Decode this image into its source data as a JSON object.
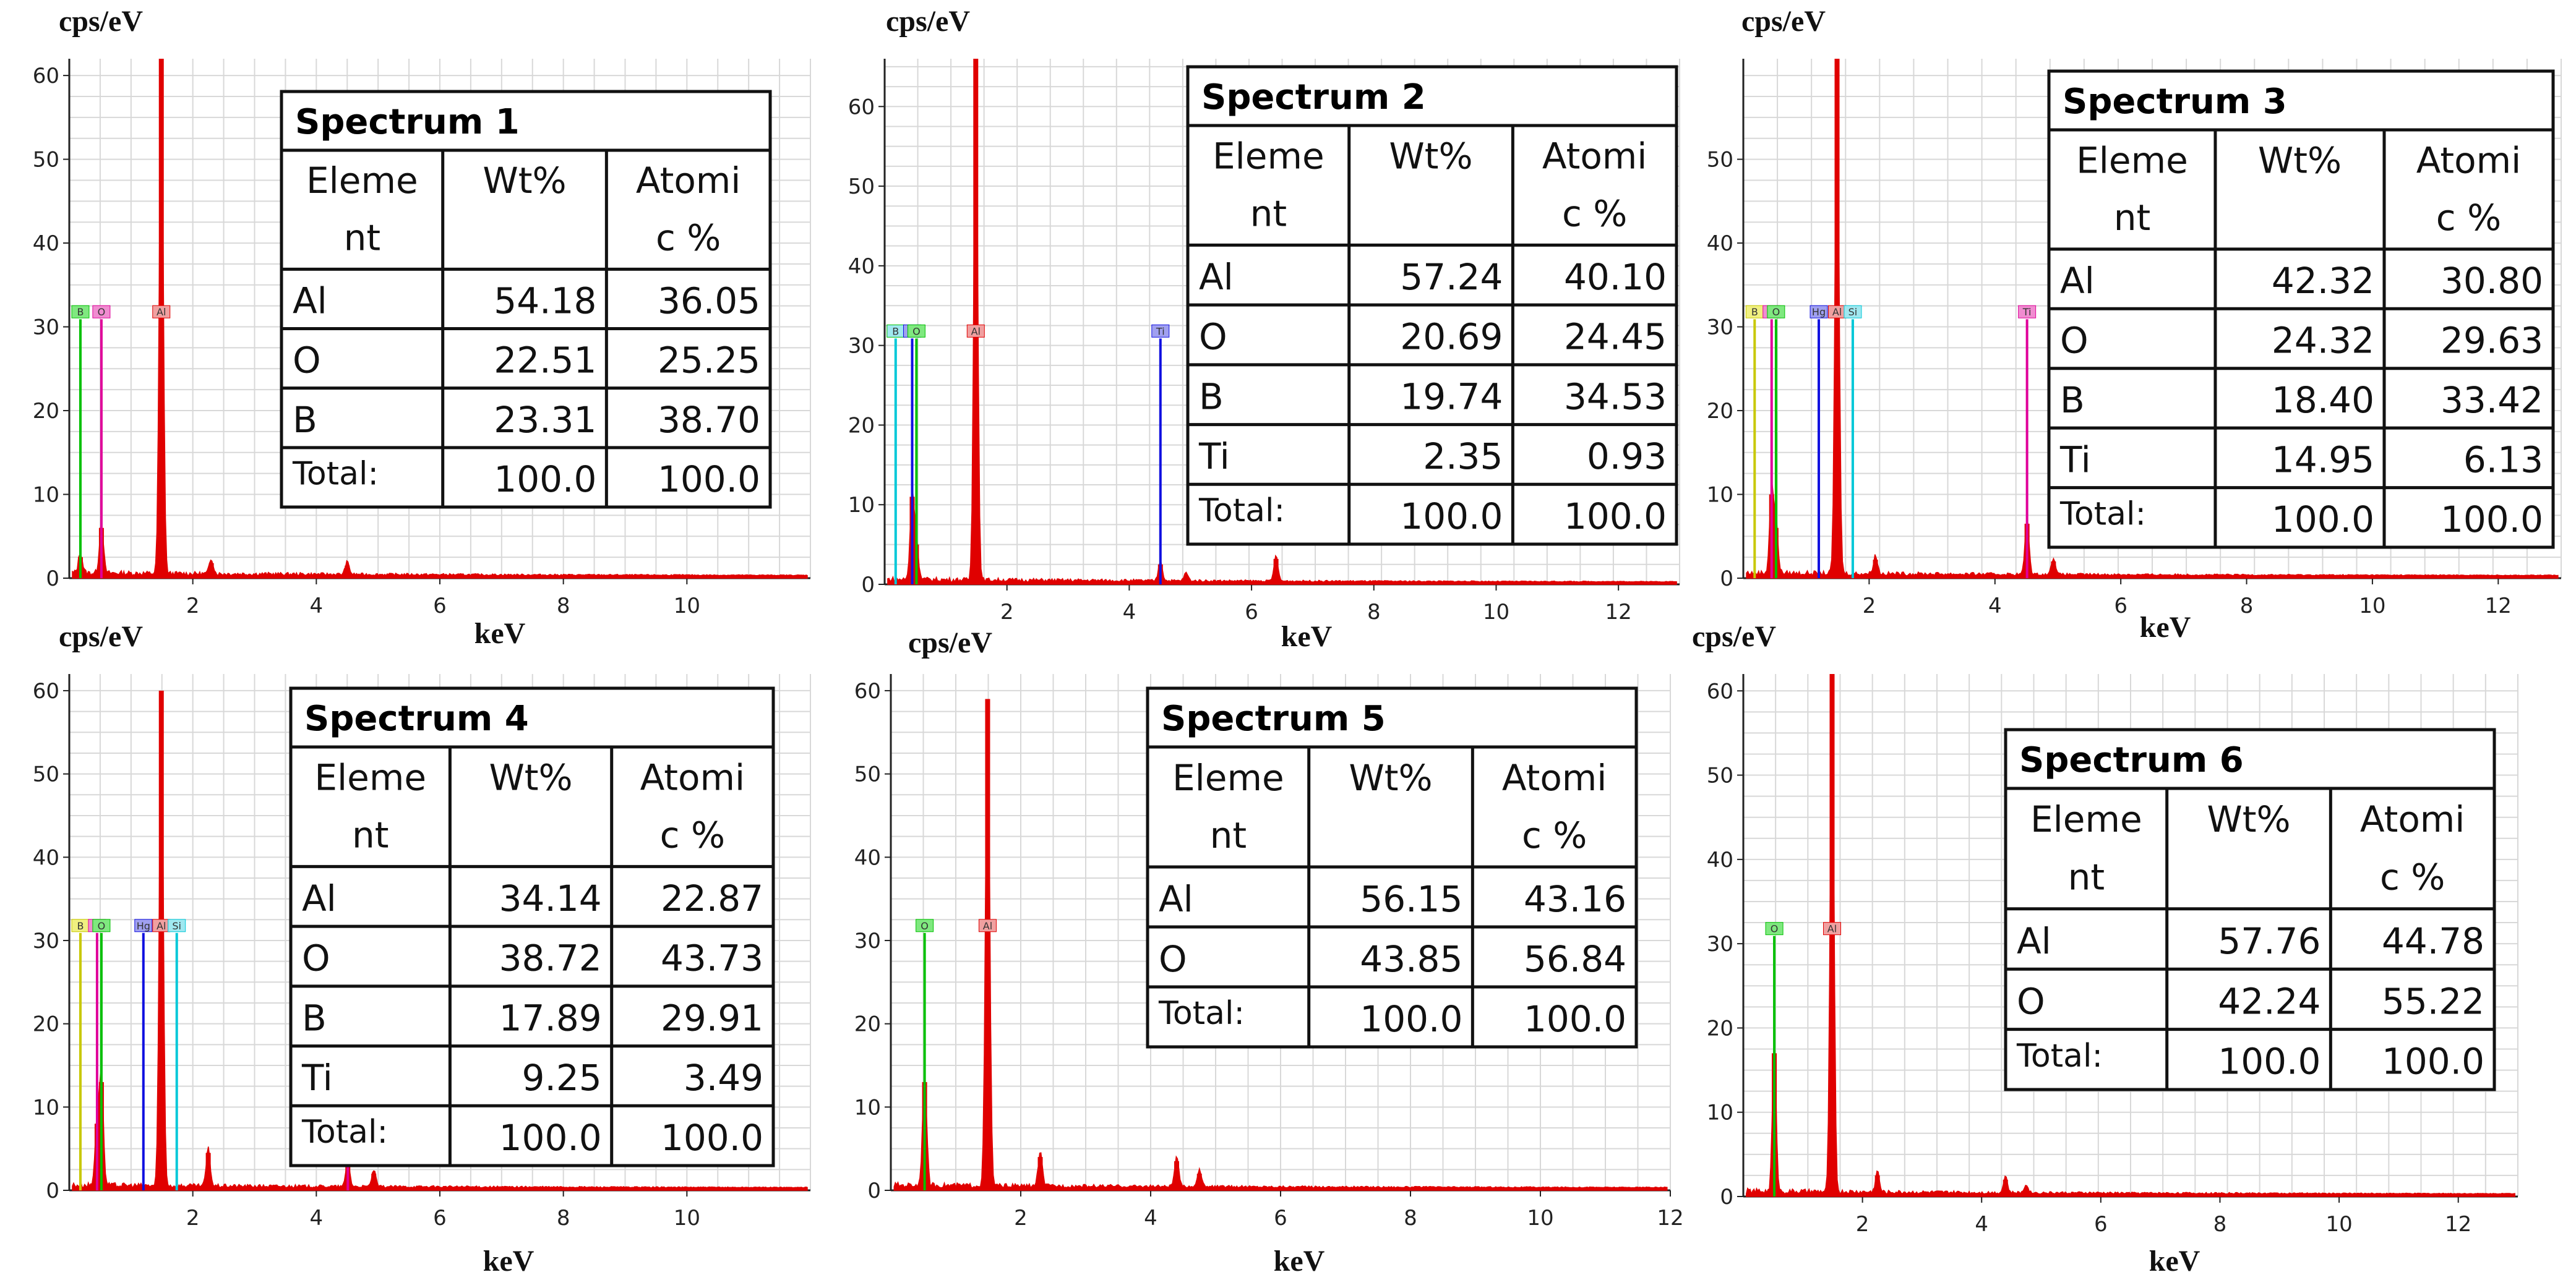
{
  "figure": {
    "ylabel": "cps/eV",
    "xlabel": "keV"
  },
  "colors": {
    "spectrum": "#e00000",
    "B": "#00c000",
    "O": "#e0009a",
    "Al": "#e00000",
    "Ti": "#1010e0",
    "Hg": "#1010e0",
    "Si": "#00c8d8",
    "grid": "#d8d8d8"
  },
  "chart_data": [
    {
      "type": "bar",
      "title": "Spectrum 1",
      "xlabel": "keV",
      "ylabel": "cps/eV",
      "xlim": [
        0,
        12
      ],
      "ylim": [
        0,
        62
      ],
      "xticks": [
        "2",
        "4",
        "6",
        "8",
        "10"
      ],
      "yticks": [
        "0",
        "10",
        "20",
        "30",
        "40",
        "50",
        "60"
      ],
      "markers": [
        {
          "el": "B",
          "x": 0.18,
          "label_color": "#00c000",
          "line_color": "#00c000",
          "label_bg": "#7fe87f"
        },
        {
          "el": "O",
          "x": 0.52,
          "label_color": "#e0009a",
          "line_color": "#e0009a",
          "label_bg": "#f08cd0"
        },
        {
          "el": "Al",
          "x": 1.49,
          "label_color": "#e00000",
          "line_color": "#e00000",
          "label_bg": "#f0a0a0"
        }
      ],
      "peaks": [
        {
          "x": 0.18,
          "y": 2.5
        },
        {
          "x": 0.52,
          "y": 6.0
        },
        {
          "x": 1.49,
          "y": 62
        },
        {
          "x": 2.3,
          "y": 1.8
        },
        {
          "x": 4.5,
          "y": 1.5
        }
      ],
      "table": {
        "heading": "Spectrum 1",
        "col1": [
          "Eleme",
          "nt"
        ],
        "col2": "Wt%",
        "col3": [
          "Atomi",
          "c %"
        ],
        "rows": [
          {
            "el": "Al",
            "wt": "54.18",
            "at": "36.05"
          },
          {
            "el": "O",
            "wt": "22.51",
            "at": "25.25"
          },
          {
            "el": "B",
            "wt": "23.31",
            "at": "38.70"
          },
          {
            "el": "Total:",
            "wt": "100.0",
            "at": "100.0"
          }
        ]
      }
    },
    {
      "type": "bar",
      "title": "Spectrum 2",
      "xlabel": "keV",
      "ylabel": "cps/eV",
      "xlim": [
        0,
        13
      ],
      "ylim": [
        0,
        66
      ],
      "xticks": [
        "2",
        "4",
        "6",
        "8",
        "10",
        "12"
      ],
      "yticks": [
        "0",
        "10",
        "20",
        "30",
        "40",
        "50",
        "60"
      ],
      "markers": [
        {
          "el": "B",
          "x": 0.18,
          "label_color": "#00c000",
          "line_color": "#00c8d8",
          "label_bg": "#a0e8f0"
        },
        {
          "el": "Ti",
          "x": 0.45,
          "label_color": "#1010e0",
          "line_color": "#1010e0",
          "label_bg": "#a0a0f0"
        },
        {
          "el": "O",
          "x": 0.52,
          "label_color": "#00c000",
          "line_color": "#00c000",
          "label_bg": "#7fe87f"
        },
        {
          "el": "Al",
          "x": 1.49,
          "label_color": "#e00000",
          "line_color": "#e00000",
          "label_bg": "#f0a0a0"
        },
        {
          "el": "Ti",
          "x": 4.51,
          "label_color": "#1010e0",
          "line_color": "#1010e0",
          "label_bg": "#a0a0f0"
        }
      ],
      "peaks": [
        {
          "x": 0.45,
          "y": 11
        },
        {
          "x": 0.52,
          "y": 5
        },
        {
          "x": 1.49,
          "y": 66
        },
        {
          "x": 4.51,
          "y": 2.5
        },
        {
          "x": 4.93,
          "y": 1.0
        },
        {
          "x": 6.4,
          "y": 3.2
        }
      ],
      "table": {
        "heading": "Spectrum 2",
        "col1": [
          "Eleme",
          "nt"
        ],
        "col2": "Wt%",
        "col3": [
          "Atomi",
          "c %"
        ],
        "rows": [
          {
            "el": "Al",
            "wt": "57.24",
            "at": "40.10"
          },
          {
            "el": "O",
            "wt": "20.69",
            "at": "24.45"
          },
          {
            "el": "B",
            "wt": "19.74",
            "at": "34.53"
          },
          {
            "el": "Ti",
            "wt": "2.35",
            "at": "0.93"
          },
          {
            "el": "Total:",
            "wt": "100.0",
            "at": "100.0"
          }
        ]
      }
    },
    {
      "type": "bar",
      "title": "Spectrum 3",
      "xlabel": "keV",
      "ylabel": "cps/eV",
      "xlim": [
        0,
        13
      ],
      "ylim": [
        0,
        62
      ],
      "xticks": [
        "2",
        "4",
        "6",
        "8",
        "10",
        "12"
      ],
      "yticks": [
        "0",
        "10",
        "20",
        "30",
        "40",
        "50"
      ],
      "markers": [
        {
          "el": "B",
          "x": 0.18,
          "label_color": "#c8c800",
          "line_color": "#c8c800",
          "label_bg": "#f0f080"
        },
        {
          "el": "Ti",
          "x": 0.45,
          "label_color": "#e0009a",
          "line_color": "#e0009a",
          "label_bg": "#f08cd0"
        },
        {
          "el": "O",
          "x": 0.52,
          "label_color": "#00c000",
          "line_color": "#00c000",
          "label_bg": "#7fe87f"
        },
        {
          "el": "Hg",
          "x": 1.2,
          "label_color": "#1010e0",
          "line_color": "#1010e0",
          "label_bg": "#a0a0f0"
        },
        {
          "el": "Al",
          "x": 1.49,
          "label_color": "#e00000",
          "line_color": "#e00000",
          "label_bg": "#f0a0a0"
        },
        {
          "el": "Si",
          "x": 1.74,
          "label_color": "#00c8d8",
          "line_color": "#00c8d8",
          "label_bg": "#a0e8f0"
        },
        {
          "el": "Ti",
          "x": 4.51,
          "label_color": "#e0009a",
          "line_color": "#e0009a",
          "label_bg": "#f08cd0"
        }
      ],
      "peaks": [
        {
          "x": 0.45,
          "y": 10
        },
        {
          "x": 0.52,
          "y": 6
        },
        {
          "x": 1.49,
          "y": 62
        },
        {
          "x": 2.1,
          "y": 2.2
        },
        {
          "x": 4.51,
          "y": 6.5
        },
        {
          "x": 4.93,
          "y": 2.0
        }
      ],
      "table": {
        "heading": "Spectrum 3",
        "col1": [
          "Eleme",
          "nt"
        ],
        "col2": "Wt%",
        "col3": [
          "Atomi",
          "c %"
        ],
        "rows": [
          {
            "el": "Al",
            "wt": "42.32",
            "at": "30.80"
          },
          {
            "el": "O",
            "wt": "24.32",
            "at": "29.63"
          },
          {
            "el": "B",
            "wt": "18.40",
            "at": "33.42"
          },
          {
            "el": "Ti",
            "wt": "14.95",
            "at": "6.13"
          },
          {
            "el": "Total:",
            "wt": "100.0",
            "at": "100.0"
          }
        ]
      }
    },
    {
      "type": "bar",
      "title": "Spectrum 4",
      "xlabel": "keV",
      "ylabel": "cps/eV",
      "xlim": [
        0,
        12
      ],
      "ylim": [
        0,
        62
      ],
      "xticks": [
        "2",
        "4",
        "6",
        "8",
        "10"
      ],
      "yticks": [
        "0",
        "10",
        "20",
        "30",
        "40",
        "50",
        "60"
      ],
      "markers": [
        {
          "el": "B",
          "x": 0.18,
          "label_color": "#c8c800",
          "line_color": "#c8c800",
          "label_bg": "#f0f080"
        },
        {
          "el": "Ti",
          "x": 0.45,
          "label_color": "#e0009a",
          "line_color": "#e0009a",
          "label_bg": "#f08cd0"
        },
        {
          "el": "O",
          "x": 0.52,
          "label_color": "#00c000",
          "line_color": "#00c000",
          "label_bg": "#7fe87f"
        },
        {
          "el": "Hg",
          "x": 1.2,
          "label_color": "#1010e0",
          "line_color": "#1010e0",
          "label_bg": "#a0a0f0"
        },
        {
          "el": "Al",
          "x": 1.49,
          "label_color": "#e00000",
          "line_color": "#e00000",
          "label_bg": "#f0a0a0"
        },
        {
          "el": "Si",
          "x": 1.74,
          "label_color": "#00c8d8",
          "line_color": "#00c8d8",
          "label_bg": "#a0e8f0"
        },
        {
          "el": "Ti",
          "x": 4.51,
          "label_color": "#e0009a",
          "line_color": "#e0009a",
          "label_bg": "#f08cd0"
        }
      ],
      "peaks": [
        {
          "x": 0.45,
          "y": 8
        },
        {
          "x": 0.52,
          "y": 13
        },
        {
          "x": 1.49,
          "y": 60
        },
        {
          "x": 2.25,
          "y": 4.5
        },
        {
          "x": 4.51,
          "y": 3.0
        },
        {
          "x": 4.93,
          "y": 2.0
        }
      ],
      "table": {
        "heading": "Spectrum 4",
        "col1": [
          "Eleme",
          "nt"
        ],
        "col2": "Wt%",
        "col3": [
          "Atomi",
          "c %"
        ],
        "rows": [
          {
            "el": "Al",
            "wt": "34.14",
            "at": "22.87"
          },
          {
            "el": "O",
            "wt": "38.72",
            "at": "43.73"
          },
          {
            "el": "B",
            "wt": "17.89",
            "at": "29.91"
          },
          {
            "el": "Ti",
            "wt": "9.25",
            "at": "3.49"
          },
          {
            "el": "Total:",
            "wt": "100.0",
            "at": "100.0"
          }
        ]
      }
    },
    {
      "type": "bar",
      "title": "Spectrum 5",
      "xlabel": "keV",
      "ylabel": "cps/eV",
      "xlim": [
        0,
        12
      ],
      "ylim": [
        0,
        62
      ],
      "xticks": [
        "2",
        "4",
        "6",
        "8",
        "10",
        "12"
      ],
      "yticks": [
        "0",
        "10",
        "20",
        "30",
        "40",
        "50",
        "60"
      ],
      "markers": [
        {
          "el": "O",
          "x": 0.52,
          "label_color": "#00c000",
          "line_color": "#00c000",
          "label_bg": "#7fe87f"
        },
        {
          "el": "Al",
          "x": 1.49,
          "label_color": "#e00000",
          "line_color": "#e00000",
          "label_bg": "#f0a0a0"
        }
      ],
      "peaks": [
        {
          "x": 0.52,
          "y": 13
        },
        {
          "x": 1.49,
          "y": 59
        },
        {
          "x": 2.3,
          "y": 4.0
        },
        {
          "x": 4.4,
          "y": 3.5
        },
        {
          "x": 4.75,
          "y": 2.0
        }
      ],
      "table": {
        "heading": "Spectrum 5",
        "col1": [
          "Eleme",
          "nt"
        ],
        "col2": "Wt%",
        "col3": [
          "Atomi",
          "c %"
        ],
        "rows": [
          {
            "el": "Al",
            "wt": "56.15",
            "at": "43.16"
          },
          {
            "el": "O",
            "wt": "43.85",
            "at": "56.84"
          },
          {
            "el": "Total:",
            "wt": "100.0",
            "at": "100.0"
          }
        ]
      }
    },
    {
      "type": "bar",
      "title": "Spectrum 6",
      "xlabel": "keV",
      "ylabel": "cps/eV",
      "xlim": [
        0,
        13
      ],
      "ylim": [
        0,
        62
      ],
      "xticks": [
        "2",
        "4",
        "6",
        "8",
        "10",
        "12"
      ],
      "yticks": [
        "0",
        "10",
        "20",
        "30",
        "40",
        "50",
        "60"
      ],
      "markers": [
        {
          "el": "O",
          "x": 0.52,
          "label_color": "#00c000",
          "line_color": "#00c000",
          "label_bg": "#7fe87f"
        },
        {
          "el": "Al",
          "x": 1.49,
          "label_color": "#e00000",
          "line_color": "#e00000",
          "label_bg": "#f0a0a0"
        }
      ],
      "peaks": [
        {
          "x": 0.52,
          "y": 17
        },
        {
          "x": 1.49,
          "y": 62
        },
        {
          "x": 2.25,
          "y": 2.5
        },
        {
          "x": 4.4,
          "y": 2.0
        },
        {
          "x": 4.75,
          "y": 1.0
        }
      ],
      "table": {
        "heading": "Spectrum 6",
        "col1": [
          "Eleme",
          "nt"
        ],
        "col2": "Wt%",
        "col3": [
          "Atomi",
          "c %"
        ],
        "rows": [
          {
            "el": "Al",
            "wt": "57.76",
            "at": "44.78"
          },
          {
            "el": "O",
            "wt": "42.24",
            "at": "55.22"
          },
          {
            "el": "Total:",
            "wt": "100.0",
            "at": "100.0"
          }
        ]
      }
    }
  ]
}
